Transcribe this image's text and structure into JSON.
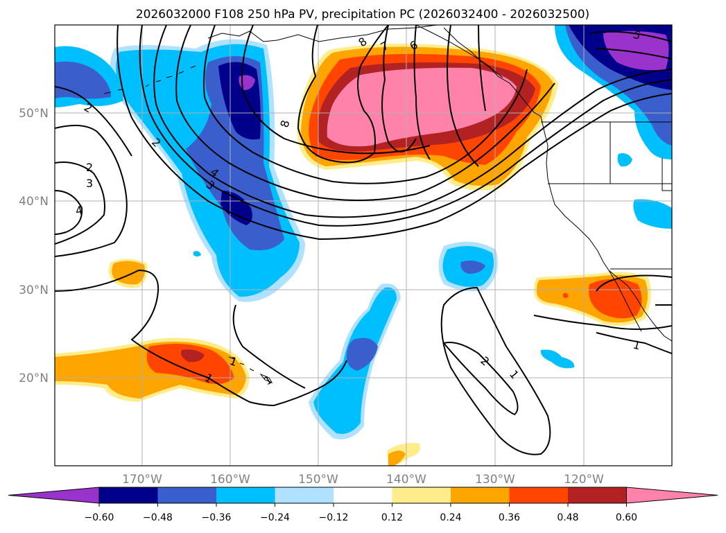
{
  "title": "2026032000 F108 250 hPa PV, precipitation PC (2026032400 - 2026032500)",
  "lat_labels": [
    "50°N",
    "40°N",
    "30°N",
    "20°N"
  ],
  "lon_labels": [
    "170°W",
    "160°W",
    "150°W",
    "140°W",
    "130°W",
    "120°W"
  ],
  "colorbar": {
    "ticks": [
      "−0.60",
      "−0.48",
      "−0.36",
      "−0.24",
      "−0.12",
      "0.12",
      "0.24",
      "0.36",
      "0.48",
      "0.60"
    ],
    "colors": [
      "#9933cc",
      "#00008b",
      "#3a5fcd",
      "#00bfff",
      "#b0e2ff",
      "#ffffff",
      "#ffec8b",
      "#ffa500",
      "#ff4500",
      "#b22222",
      "#ff82ab"
    ]
  },
  "contour_labels": [
    "8",
    "7",
    "6",
    "5",
    "8",
    "2",
    "4",
    "3",
    "2",
    "3",
    "4",
    "1",
    "2",
    "1",
    "1",
    "2",
    "1",
    "1"
  ]
}
